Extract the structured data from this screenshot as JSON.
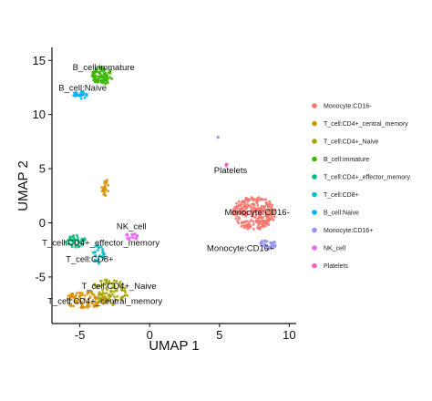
{
  "chart_data": {
    "type": "scatter",
    "xlabel": "UMAP 1",
    "ylabel": "UMAP 2",
    "xlim": [
      -7,
      10.5
    ],
    "ylim": [
      -9.3,
      16.2
    ],
    "xticks": [
      {
        "value": -5,
        "label": "-5"
      },
      {
        "value": 0,
        "label": "0"
      },
      {
        "value": 5,
        "label": "5"
      },
      {
        "value": 10,
        "label": "10"
      }
    ],
    "yticks": [
      {
        "value": -5,
        "label": "-5"
      },
      {
        "value": 0,
        "label": "0"
      },
      {
        "value": 5,
        "label": "5"
      },
      {
        "value": 10,
        "label": "10"
      },
      {
        "value": 15,
        "label": "15"
      }
    ],
    "grid": false,
    "legend_position": "right",
    "series": [
      {
        "name": "Monocyte:CD16-",
        "color": "#F8766D",
        "clusters": [
          {
            "cx": 7.5,
            "cy": 0.9,
            "rx": 1.55,
            "ry": 1.55,
            "n": 260
          }
        ]
      },
      {
        "name": "T_cell:CD4+_central_memory",
        "color": "#D89000",
        "clusters": [
          {
            "cx": -4.6,
            "cy": -7.1,
            "rx": 1.6,
            "ry": 0.75,
            "n": 95
          },
          {
            "cx": -3.2,
            "cy": 3.2,
            "rx": 0.3,
            "ry": 0.9,
            "n": 22
          }
        ]
      },
      {
        "name": "T_cell:CD4+_Naive",
        "color": "#A3A500",
        "clusters": [
          {
            "cx": -2.9,
            "cy": -6.4,
            "rx": 1.35,
            "ry": 1.2,
            "n": 85
          }
        ]
      },
      {
        "name": "B_cell:immature",
        "color": "#39B600",
        "clusters": [
          {
            "cx": -3.4,
            "cy": 13.6,
            "rx": 0.75,
            "ry": 0.85,
            "n": 85
          }
        ]
      },
      {
        "name": "T_cell:CD4+_effector_memory",
        "color": "#00BF7D",
        "clusters": [
          {
            "cx": -5.3,
            "cy": -1.7,
            "rx": 0.75,
            "ry": 0.55,
            "n": 40
          }
        ]
      },
      {
        "name": "T_cell:CD8+",
        "color": "#00BFC4",
        "clusters": [
          {
            "cx": -3.7,
            "cy": -2.9,
            "rx": 0.5,
            "ry": 0.9,
            "n": 28
          }
        ]
      },
      {
        "name": "B_cell:Naive",
        "color": "#00B0F6",
        "clusters": [
          {
            "cx": -5.0,
            "cy": 11.8,
            "rx": 0.55,
            "ry": 0.35,
            "n": 28
          }
        ]
      },
      {
        "name": "Monocyte:CD16+",
        "color": "#9590FF",
        "clusters": [
          {
            "cx": 8.5,
            "cy": -2.0,
            "rx": 0.65,
            "ry": 0.45,
            "n": 28
          }
        ]
      },
      {
        "name": "NK_cell",
        "color": "#E76BF3",
        "clusters": [
          {
            "cx": -1.3,
            "cy": -1.3,
            "rx": 0.5,
            "ry": 0.3,
            "n": 20
          }
        ]
      },
      {
        "name": "Platelets",
        "color": "#FF62BC",
        "clusters": [
          {
            "cx": 5.5,
            "cy": 5.4,
            "rx": 0.06,
            "ry": 0.2,
            "n": 4
          }
        ]
      }
    ],
    "extra_points": [
      {
        "x": 4.9,
        "y": 7.9,
        "color": "#9590FF"
      }
    ],
    "annotations": [
      {
        "text": "B_cell:immature",
        "x": -3.3,
        "y": 14.1
      },
      {
        "text": "B_cell:Naive",
        "x": -4.8,
        "y": 12.2
      },
      {
        "text": "Platelets",
        "x": 5.8,
        "y": 4.6
      },
      {
        "text": "Monocyte:CD16-",
        "x": 7.7,
        "y": 0.7
      },
      {
        "text": "NK_cell",
        "x": -1.3,
        "y": -0.6
      },
      {
        "text": "T_cell:CD4+_effector_memory",
        "x": -3.5,
        "y": -2.1
      },
      {
        "text": "Monocyte:CD16+",
        "x": 6.5,
        "y": -2.6
      },
      {
        "text": "T_cell:CD8+",
        "x": -4.3,
        "y": -3.6
      },
      {
        "text": "T_cell:CD4+_Naive",
        "x": -2.2,
        "y": -6.1
      },
      {
        "text": "T_cell:CD4+_central_memory",
        "x": -3.2,
        "y": -7.5
      }
    ]
  }
}
